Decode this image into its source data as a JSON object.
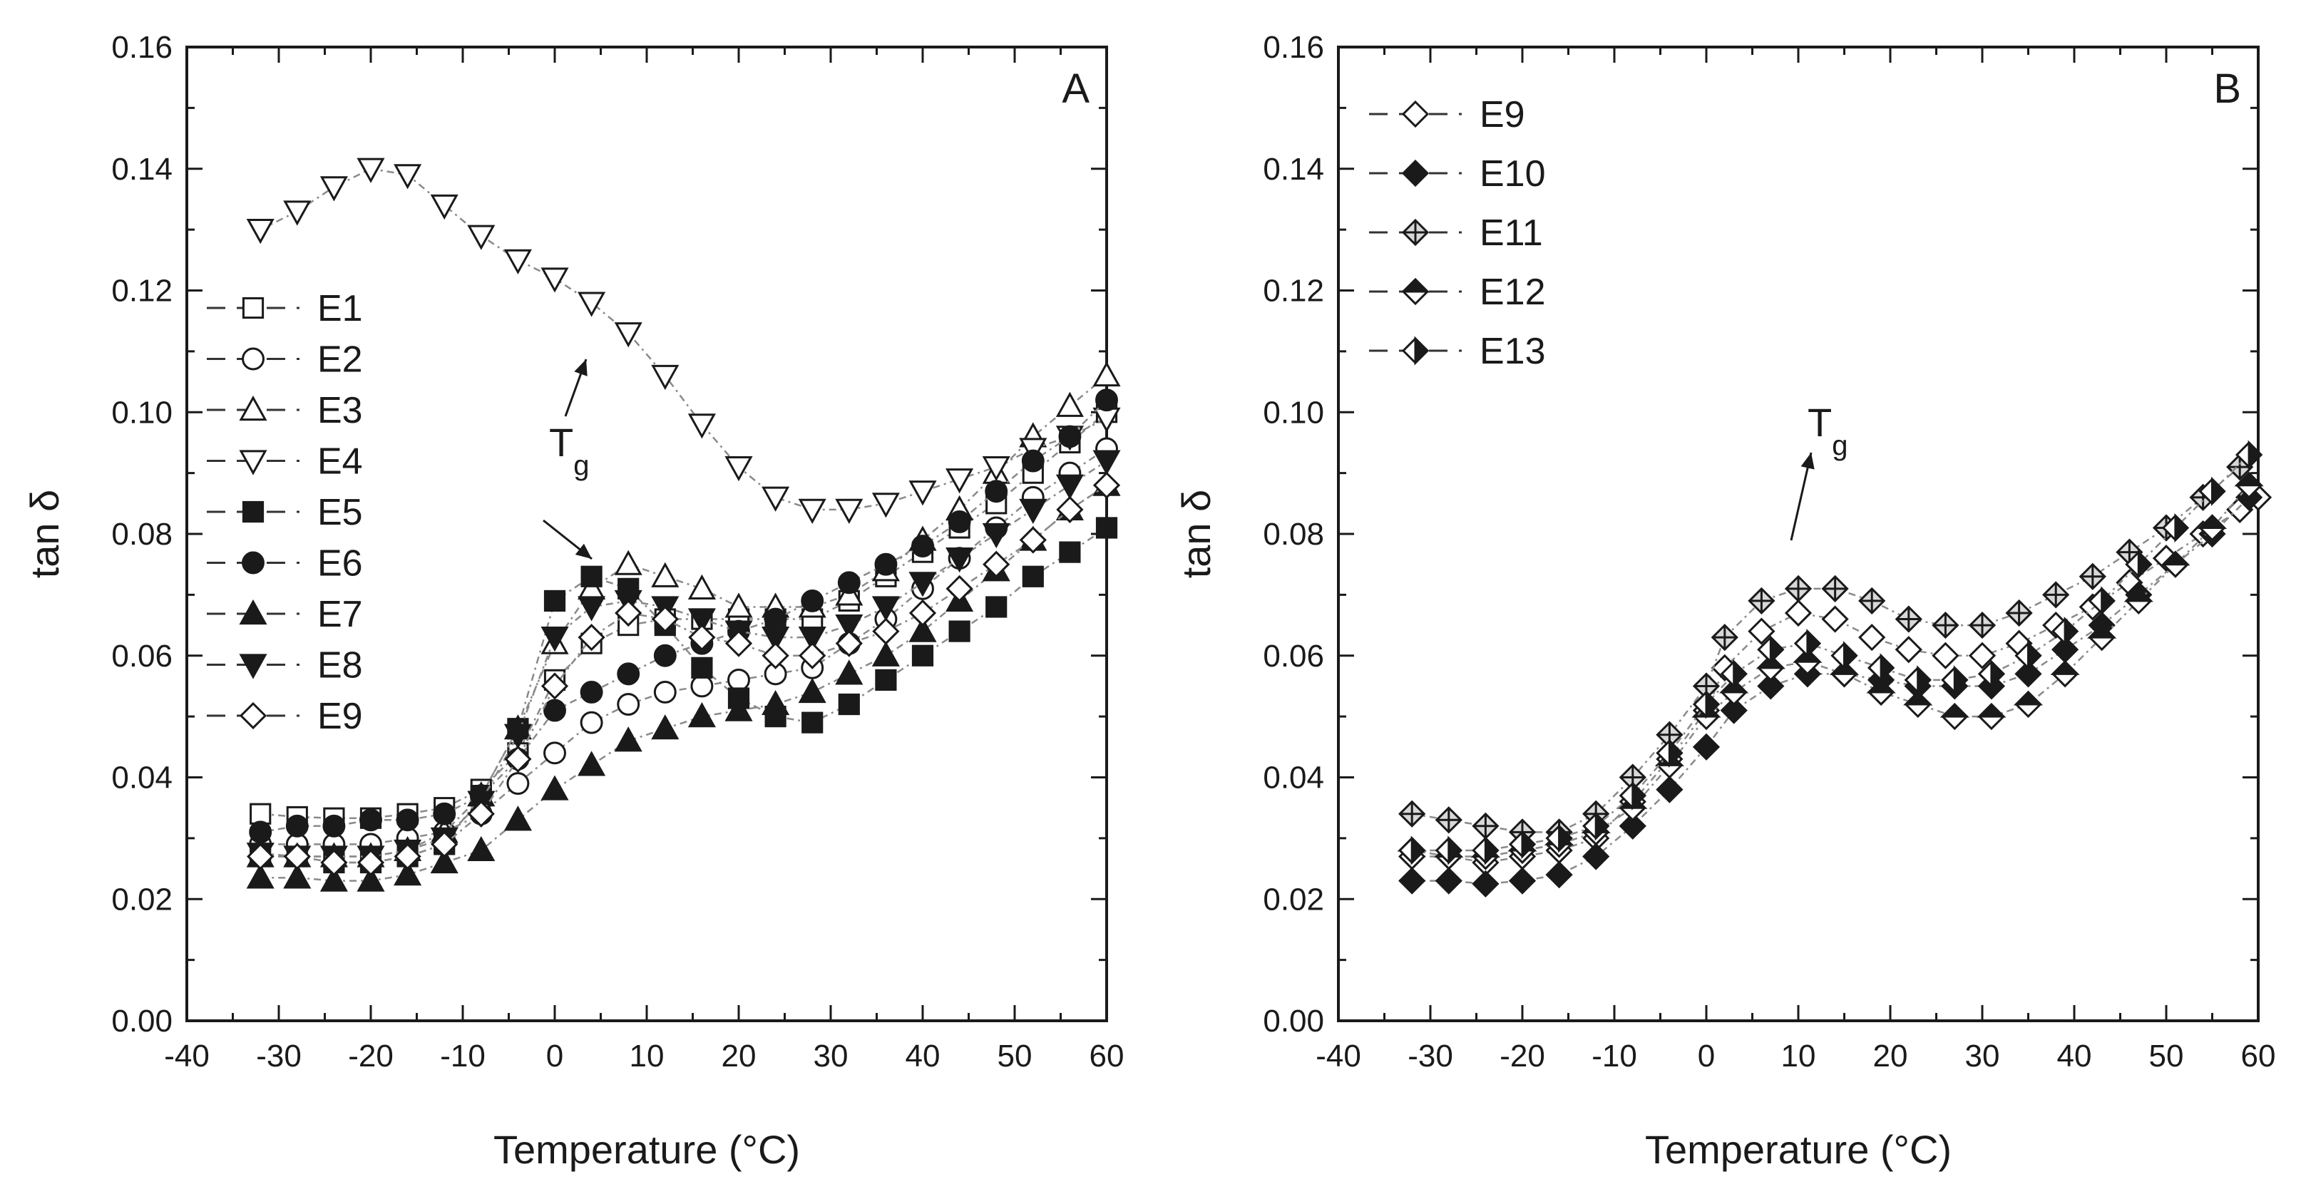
{
  "chart_data": [
    {
      "type": "scatter",
      "panel": "A",
      "xlabel": "Temperature (°C)",
      "ylabel": "tan δ",
      "xlim": [
        -40,
        60
      ],
      "ylim": [
        0,
        0.16
      ],
      "xticks": [
        -40,
        -30,
        -20,
        -10,
        0,
        10,
        20,
        30,
        40,
        50,
        60
      ],
      "yticks": [
        0.0,
        0.02,
        0.04,
        0.06,
        0.08,
        0.1,
        0.12,
        0.14,
        0.16
      ],
      "xtick_labels": [
        "-40",
        "-30",
        "-20",
        "-10",
        "0",
        "10",
        "20",
        "30",
        "40",
        "50",
        "60"
      ],
      "ytick_labels": [
        "0.00",
        "0.02",
        "0.04",
        "0.06",
        "0.08",
        "0.10",
        "0.12",
        "0.14",
        "0.16"
      ],
      "legend_position": "left",
      "annotation": {
        "text": "T",
        "subscript": "g"
      },
      "series": [
        {
          "name": "E1",
          "marker": "square-open",
          "x": [
            -32,
            -28,
            -24,
            -20,
            -16,
            -12,
            -8,
            -4,
            0,
            4,
            8,
            12,
            16,
            20,
            24,
            28,
            32,
            36,
            40,
            44,
            48,
            52,
            56,
            60
          ],
          "y": [
            0.034,
            0.0335,
            0.0333,
            0.0333,
            0.034,
            0.035,
            0.038,
            0.044,
            0.056,
            0.062,
            0.065,
            0.066,
            0.066,
            0.066,
            0.066,
            0.066,
            0.069,
            0.073,
            0.077,
            0.081,
            0.085,
            0.09,
            0.095,
            0.1
          ]
        },
        {
          "name": "E2",
          "marker": "circle-open",
          "x": [
            -32,
            -28,
            -24,
            -20,
            -16,
            -12,
            -8,
            -4,
            0,
            4,
            8,
            12,
            16,
            20,
            24,
            28,
            32,
            36,
            40,
            44,
            48,
            52,
            56,
            60
          ],
          "y": [
            0.029,
            0.029,
            0.029,
            0.029,
            0.03,
            0.031,
            0.034,
            0.039,
            0.044,
            0.049,
            0.052,
            0.054,
            0.055,
            0.056,
            0.057,
            0.058,
            0.062,
            0.066,
            0.071,
            0.076,
            0.081,
            0.086,
            0.09,
            0.094
          ]
        },
        {
          "name": "E3",
          "marker": "triangle-up-open",
          "x": [
            -32,
            -28,
            -24,
            -20,
            -16,
            -12,
            -8,
            -4,
            0,
            4,
            8,
            12,
            16,
            20,
            24,
            28,
            32,
            36,
            40,
            44,
            48,
            52,
            56,
            60
          ],
          "y": [
            0.027,
            0.027,
            0.027,
            0.027,
            0.028,
            0.031,
            0.037,
            0.048,
            0.062,
            0.071,
            0.075,
            0.073,
            0.071,
            0.068,
            0.068,
            0.068,
            0.07,
            0.074,
            0.079,
            0.084,
            0.09,
            0.096,
            0.101,
            0.106
          ]
        },
        {
          "name": "E4",
          "marker": "triangle-down-open",
          "x": [
            -32,
            -28,
            -24,
            -20,
            -16,
            -12,
            -8,
            -4,
            0,
            4,
            8,
            12,
            16,
            20,
            24,
            28,
            32,
            36,
            40,
            44,
            48,
            52,
            56,
            60
          ],
          "y": [
            0.13,
            0.133,
            0.137,
            0.14,
            0.139,
            0.134,
            0.129,
            0.125,
            0.122,
            0.118,
            0.113,
            0.106,
            0.098,
            0.091,
            0.086,
            0.084,
            0.084,
            0.085,
            0.087,
            0.089,
            0.091,
            0.094,
            0.096,
            0.099
          ]
        },
        {
          "name": "E5",
          "marker": "square-filled",
          "x": [
            -32,
            -28,
            -24,
            -20,
            -16,
            -12,
            -8,
            -4,
            0,
            4,
            8,
            12,
            16,
            20,
            24,
            28,
            32,
            36,
            40,
            44,
            48,
            52,
            56,
            60
          ],
          "y": [
            0.027,
            0.027,
            0.026,
            0.026,
            0.027,
            0.029,
            0.037,
            0.048,
            0.069,
            0.073,
            0.071,
            0.065,
            0.058,
            0.053,
            0.05,
            0.049,
            0.052,
            0.056,
            0.06,
            0.064,
            0.068,
            0.073,
            0.077,
            0.081
          ]
        },
        {
          "name": "E6",
          "marker": "circle-filled",
          "x": [
            -32,
            -28,
            -24,
            -20,
            -16,
            -12,
            -8,
            -4,
            0,
            4,
            8,
            12,
            16,
            20,
            24,
            28,
            32,
            36,
            40,
            44,
            48,
            52,
            56,
            60
          ],
          "y": [
            0.031,
            0.032,
            0.032,
            0.033,
            0.033,
            0.034,
            0.037,
            0.043,
            0.051,
            0.054,
            0.057,
            0.06,
            0.062,
            0.064,
            0.066,
            0.069,
            0.072,
            0.075,
            0.078,
            0.082,
            0.087,
            0.092,
            0.096,
            0.102
          ]
        },
        {
          "name": "E7",
          "marker": "triangle-up-filled",
          "x": [
            -32,
            -28,
            -24,
            -20,
            -16,
            -12,
            -8,
            -4,
            0,
            4,
            8,
            12,
            16,
            20,
            24,
            28,
            32,
            36,
            40,
            44,
            48,
            52,
            56,
            60
          ],
          "y": [
            0.0235,
            0.0235,
            0.023,
            0.023,
            0.024,
            0.026,
            0.028,
            0.033,
            0.038,
            0.042,
            0.046,
            0.048,
            0.05,
            0.051,
            0.052,
            0.054,
            0.057,
            0.06,
            0.064,
            0.069,
            0.074,
            0.079,
            0.084,
            0.088
          ]
        },
        {
          "name": "E8",
          "marker": "triangle-down-filled",
          "x": [
            -32,
            -28,
            -24,
            -20,
            -16,
            -12,
            -8,
            -4,
            0,
            4,
            8,
            12,
            16,
            20,
            24,
            28,
            32,
            36,
            40,
            44,
            48,
            52,
            56,
            60
          ],
          "y": [
            0.0275,
            0.027,
            0.027,
            0.027,
            0.028,
            0.03,
            0.036,
            0.047,
            0.063,
            0.068,
            0.069,
            0.068,
            0.066,
            0.064,
            0.063,
            0.063,
            0.065,
            0.068,
            0.072,
            0.076,
            0.08,
            0.084,
            0.088,
            0.092
          ]
        },
        {
          "name": "E9",
          "marker": "diamond-open",
          "x": [
            -32,
            -28,
            -24,
            -20,
            -16,
            -12,
            -8,
            -4,
            0,
            4,
            8,
            12,
            16,
            20,
            24,
            28,
            32,
            36,
            40,
            44,
            48,
            52,
            56,
            60
          ],
          "y": [
            0.027,
            0.027,
            0.026,
            0.026,
            0.027,
            0.029,
            0.034,
            0.043,
            0.055,
            0.063,
            0.067,
            0.066,
            0.063,
            0.062,
            0.06,
            0.06,
            0.062,
            0.064,
            0.067,
            0.071,
            0.075,
            0.079,
            0.084,
            0.088
          ]
        }
      ]
    },
    {
      "type": "scatter",
      "panel": "B",
      "xlabel": "Temperature (°C)",
      "ylabel": "tan δ",
      "xlim": [
        -40,
        60
      ],
      "ylim": [
        0,
        0.16
      ],
      "xticks": [
        -40,
        -30,
        -20,
        -10,
        0,
        10,
        20,
        30,
        40,
        50,
        60
      ],
      "yticks": [
        0.0,
        0.02,
        0.04,
        0.06,
        0.08,
        0.1,
        0.12,
        0.14,
        0.16
      ],
      "xtick_labels": [
        "-40",
        "-30",
        "-20",
        "-10",
        "0",
        "10",
        "20",
        "30",
        "40",
        "50",
        "60"
      ],
      "ytick_labels": [
        "0.00",
        "0.02",
        "0.04",
        "0.06",
        "0.08",
        "0.10",
        "0.12",
        "0.14",
        "0.16"
      ],
      "legend_position": "top-left",
      "annotation": {
        "text": "T",
        "subscript": "g"
      },
      "series": [
        {
          "name": "E9",
          "marker": "diamond-open",
          "x": [
            -32,
            -28,
            -24,
            -20,
            -16,
            -12,
            -8,
            -4,
            0,
            2,
            6,
            10,
            14,
            18,
            22,
            26,
            30,
            34,
            38,
            42,
            46,
            50,
            54,
            58,
            60
          ],
          "y": [
            0.027,
            0.027,
            0.026,
            0.027,
            0.028,
            0.03,
            0.036,
            0.043,
            0.051,
            0.058,
            0.064,
            0.067,
            0.066,
            0.063,
            0.061,
            0.06,
            0.06,
            0.062,
            0.065,
            0.068,
            0.072,
            0.076,
            0.08,
            0.084,
            0.086
          ]
        },
        {
          "name": "E10",
          "marker": "diamond-filled",
          "x": [
            -32,
            -28,
            -24,
            -20,
            -16,
            -12,
            -8,
            -4,
            0,
            3,
            7,
            11,
            15,
            19,
            23,
            27,
            31,
            35,
            39,
            43,
            47,
            51,
            55,
            59
          ],
          "y": [
            0.023,
            0.023,
            0.0225,
            0.023,
            0.024,
            0.027,
            0.032,
            0.038,
            0.045,
            0.051,
            0.055,
            0.057,
            0.057,
            0.056,
            0.055,
            0.055,
            0.055,
            0.057,
            0.061,
            0.065,
            0.07,
            0.075,
            0.08,
            0.086
          ]
        },
        {
          "name": "E11",
          "marker": "diamond-crossed",
          "x": [
            -32,
            -28,
            -24,
            -20,
            -16,
            -12,
            -8,
            -4,
            0,
            2,
            6,
            10,
            14,
            18,
            22,
            26,
            30,
            34,
            38,
            42,
            46,
            50,
            54,
            58
          ],
          "y": [
            0.034,
            0.033,
            0.032,
            0.031,
            0.031,
            0.034,
            0.04,
            0.047,
            0.055,
            0.063,
            0.069,
            0.071,
            0.071,
            0.069,
            0.066,
            0.065,
            0.065,
            0.067,
            0.07,
            0.073,
            0.077,
            0.081,
            0.086,
            0.091
          ]
        },
        {
          "name": "E12",
          "marker": "diamond-half-top",
          "x": [
            -32,
            -28,
            -24,
            -20,
            -16,
            -12,
            -8,
            -4,
            0,
            3,
            7,
            11,
            15,
            19,
            23,
            27,
            31,
            35,
            39,
            43,
            47,
            51,
            55,
            59
          ],
          "y": [
            0.028,
            0.027,
            0.027,
            0.028,
            0.029,
            0.031,
            0.035,
            0.042,
            0.05,
            0.054,
            0.058,
            0.059,
            0.057,
            0.054,
            0.052,
            0.05,
            0.05,
            0.052,
            0.057,
            0.063,
            0.069,
            0.075,
            0.081,
            0.088
          ]
        },
        {
          "name": "E13",
          "marker": "diamond-half-right",
          "x": [
            -32,
            -28,
            -24,
            -20,
            -16,
            -12,
            -8,
            -4,
            0,
            3,
            7,
            11,
            15,
            19,
            23,
            27,
            31,
            35,
            39,
            43,
            47,
            51,
            55,
            59
          ],
          "y": [
            0.028,
            0.028,
            0.028,
            0.029,
            0.03,
            0.032,
            0.037,
            0.044,
            0.052,
            0.057,
            0.061,
            0.062,
            0.06,
            0.058,
            0.056,
            0.056,
            0.057,
            0.06,
            0.064,
            0.069,
            0.075,
            0.081,
            0.087,
            0.093
          ]
        }
      ]
    }
  ]
}
